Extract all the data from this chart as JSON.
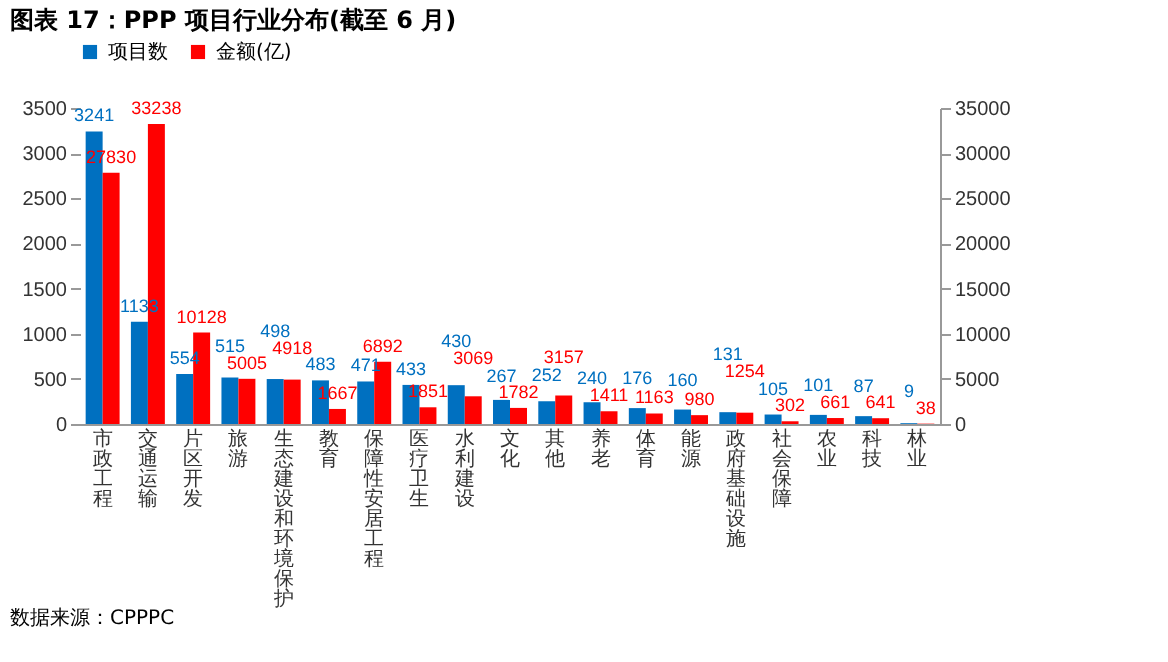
{
  "chart_data": {
    "type": "bar",
    "title": "图表 17：PPP 项目行业分布(截至 6 月)",
    "categories": [
      "市政工程",
      "交通运输",
      "片区开发",
      "旅游",
      "生态建设和环境保护",
      "教育",
      "保障性安居工程",
      "医疗卫生",
      "水利建设",
      "文化",
      "其他",
      "养老",
      "体育",
      "能源",
      "政府基础设施",
      "社会保障",
      "农业",
      "科技",
      "林业"
    ],
    "series": [
      {
        "name": "项目数",
        "color": "#0070c0",
        "values": [
          3241,
          1133,
          554,
          515,
          498,
          483,
          471,
          433,
          430,
          267,
          252,
          240,
          176,
          160,
          131,
          105,
          101,
          87,
          9
        ]
      },
      {
        "name": "金额(亿)",
        "color": "#ff0000",
        "axis": "y2",
        "values": [
          27830,
          33238,
          10128,
          5005,
          4918,
          1667,
          6892,
          1851,
          3069,
          1782,
          3157,
          1411,
          1163,
          980,
          1254,
          302,
          661,
          641,
          38
        ]
      }
    ],
    "ylim": [
      0,
      3500
    ],
    "yticks": [
      0,
      500,
      1000,
      1500,
      2000,
      2500,
      3000,
      3500
    ],
    "y2lim": [
      0,
      35000
    ],
    "y2ticks": [
      0,
      5000,
      10000,
      15000,
      20000,
      25000,
      30000,
      35000
    ],
    "data_labels": true,
    "legend": "top",
    "grid": false,
    "annotations": [
      "数据来源：CPPPC"
    ]
  }
}
